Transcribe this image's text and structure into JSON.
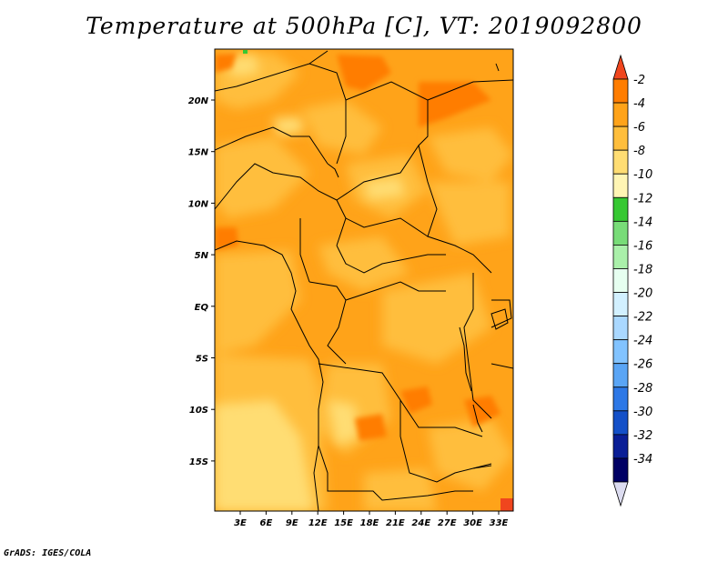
{
  "title": "Temperature at 500hPa [C], VT: 2019092800",
  "credit": "GrADS: IGES/COLA",
  "map": {
    "lat_labels": [
      "20N",
      "15N",
      "10N",
      "5N",
      "EQ",
      "5S",
      "10S",
      "15S"
    ],
    "lon_labels": [
      "3E",
      "6E",
      "9E",
      "12E",
      "15E",
      "18E",
      "21E",
      "24E",
      "27E",
      "30E",
      "33E"
    ]
  },
  "legend": {
    "labels": [
      "-2",
      "-4",
      "-6",
      "-8",
      "-10",
      "-12",
      "-14",
      "-16",
      "-18",
      "-20",
      "-22",
      "-24",
      "-26",
      "-28",
      "-30",
      "-32",
      "-34"
    ],
    "colors": [
      "#f0461e",
      "#ff7d00",
      "#ffa319",
      "#ffbe3c",
      "#ffdd73",
      "#fff5b4",
      "#36c832",
      "#78dc78",
      "#aaf0aa",
      "#e6fff0",
      "#d2f0ff",
      "#aad8ff",
      "#82c3ff",
      "#5aa5f5",
      "#2d78e6",
      "#1450c8",
      "#0a1e96",
      "#000064",
      "#dcdcf0"
    ]
  }
}
